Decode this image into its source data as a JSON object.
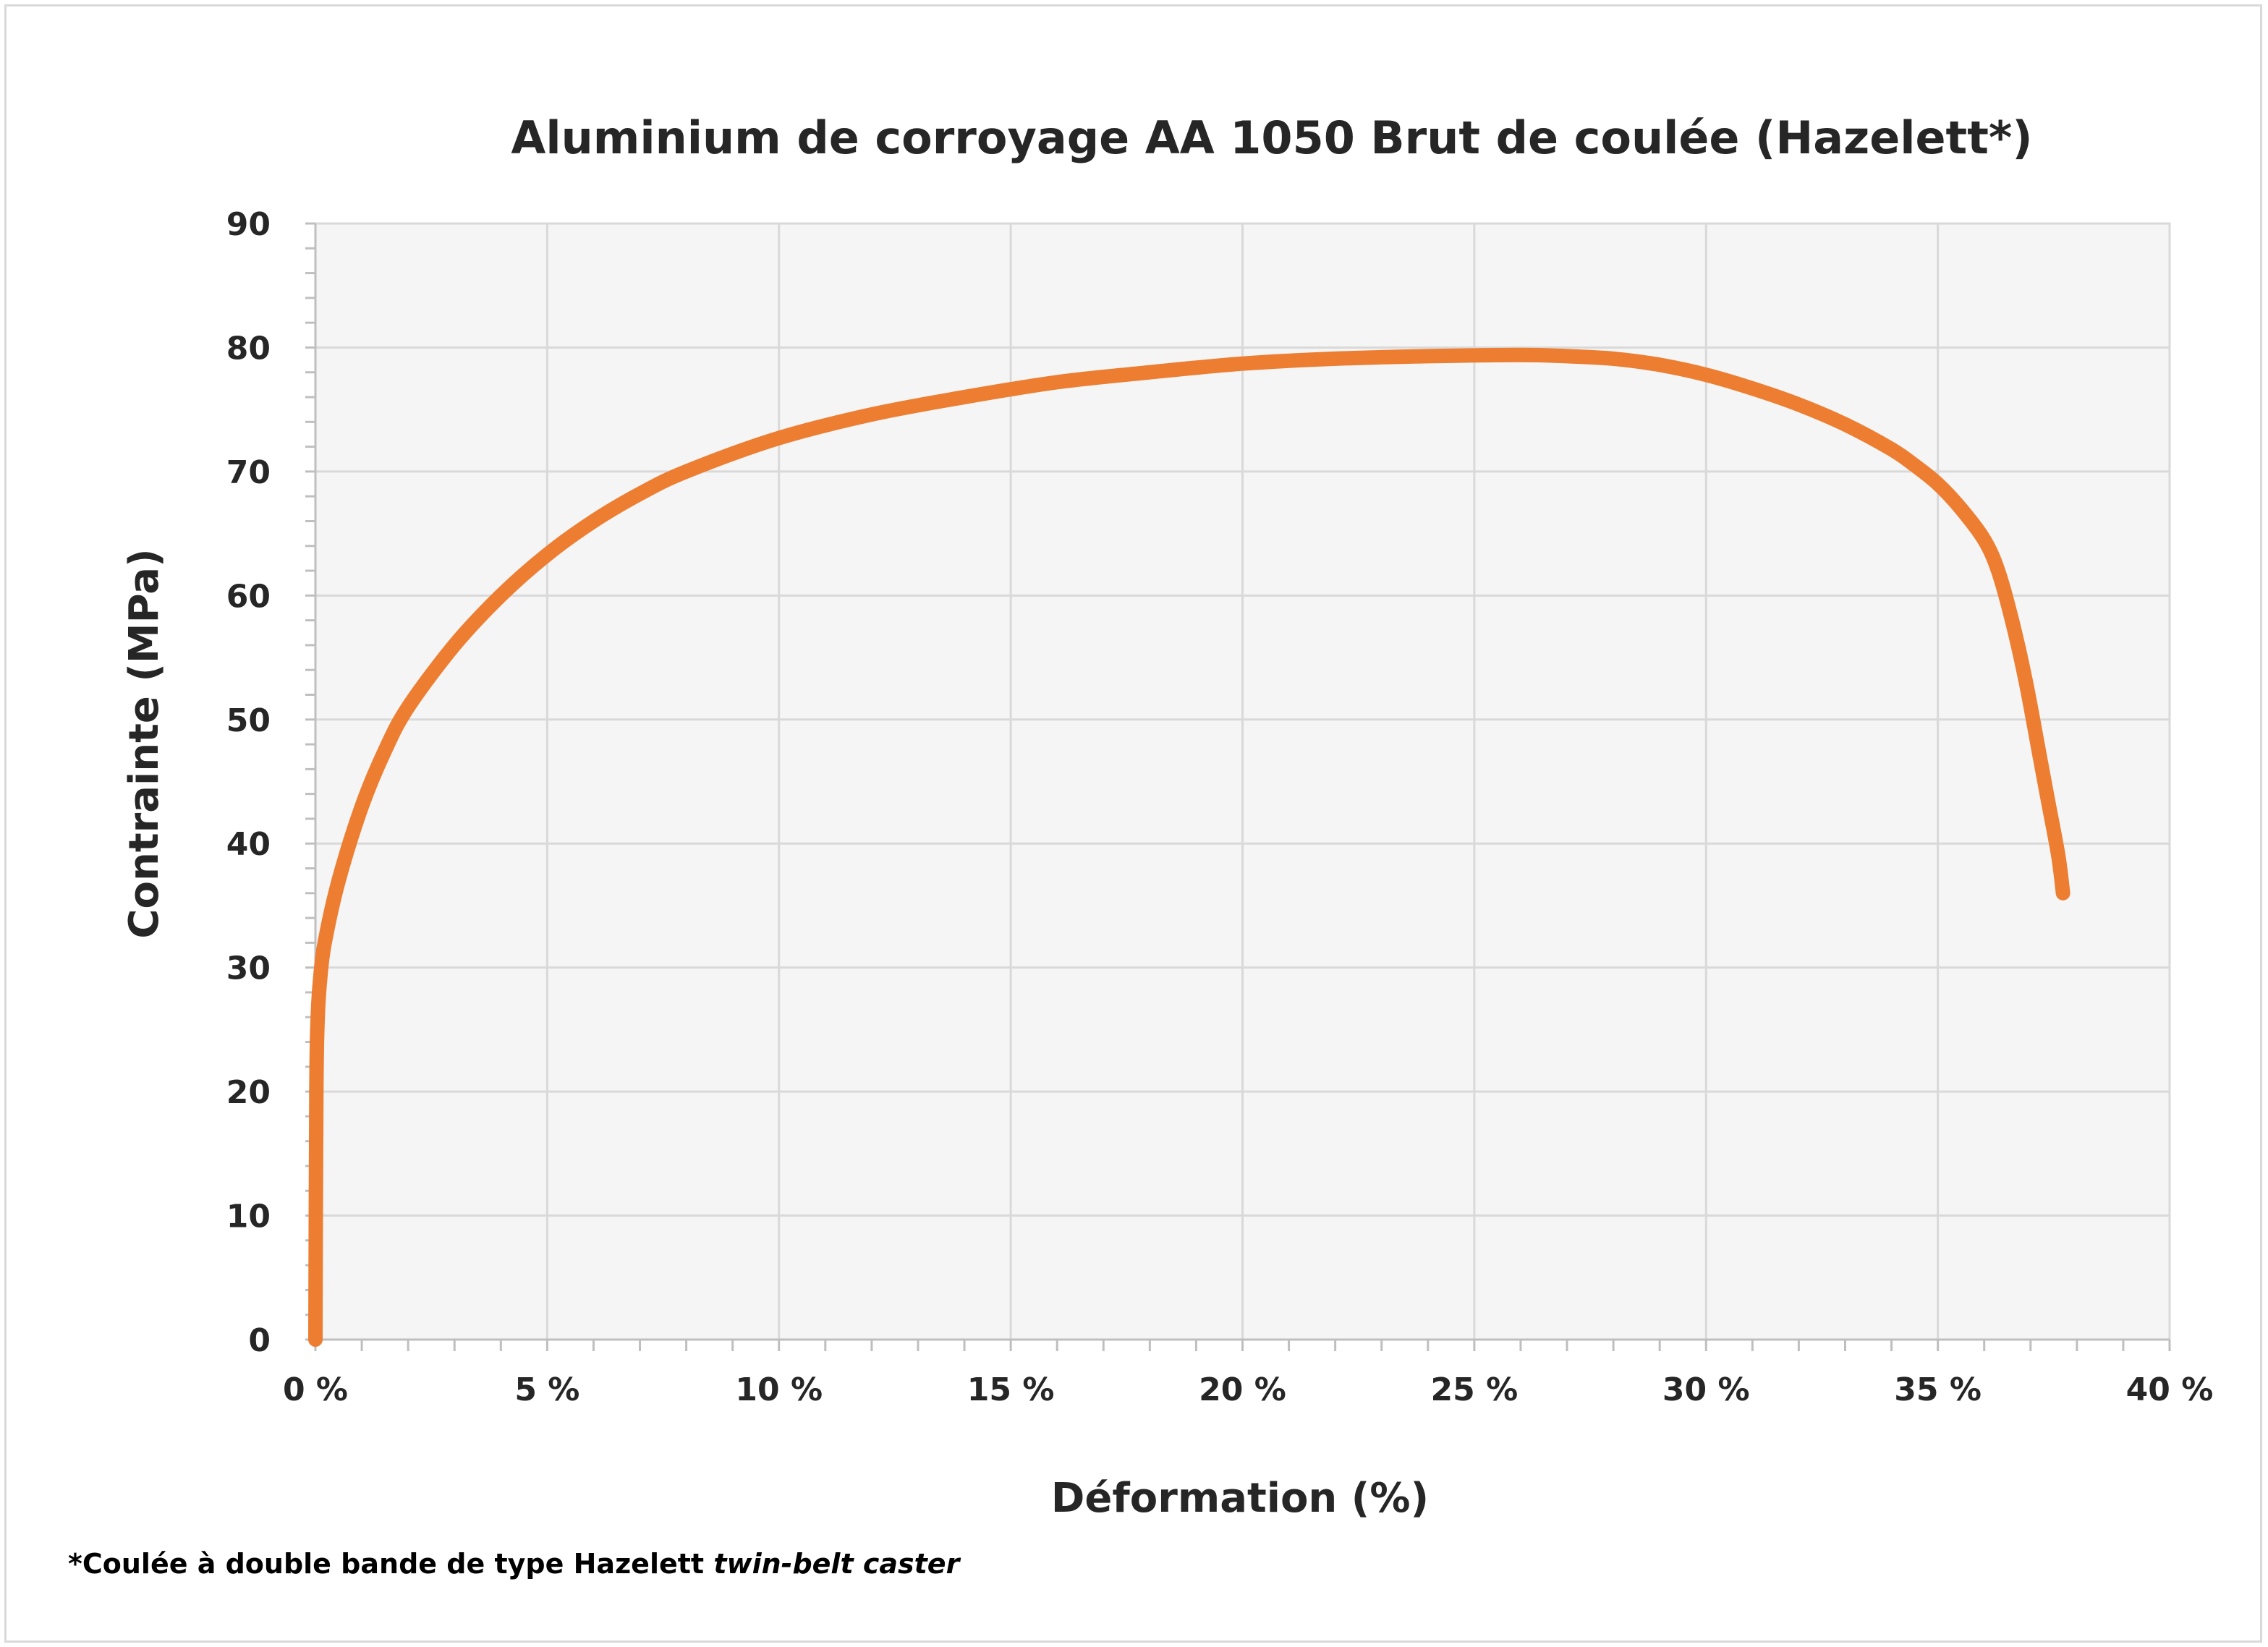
{
  "chart_data": {
    "type": "line",
    "title": "Aluminium de corroyage AA 1050 Brut de coulée (Hazelett*)",
    "xlabel": "Déformation (%)",
    "ylabel": "Contrainte (MPa)",
    "xlim": [
      0,
      40
    ],
    "ylim": [
      0,
      90
    ],
    "x_ticks": [
      0,
      5,
      10,
      15,
      20,
      25,
      30,
      35,
      40
    ],
    "x_tick_labels": [
      "0 %",
      "5 %",
      "10 %",
      "15 %",
      "20 %",
      "25 %",
      "30 %",
      "35 %",
      "40 %"
    ],
    "y_ticks": [
      0,
      10,
      20,
      30,
      40,
      50,
      60,
      70,
      80,
      90
    ],
    "y_tick_labels": [
      "0",
      "10",
      "20",
      "30",
      "40",
      "50",
      "60",
      "70",
      "80",
      "90"
    ],
    "grid": true,
    "legend": "none",
    "series": [
      {
        "color": "#ED7D31",
        "x": [
          0,
          0.02,
          0.05,
          0.1,
          0.2,
          0.5,
          1,
          1.5,
          2,
          3,
          4,
          5,
          6,
          7,
          8,
          10,
          12,
          14,
          16,
          18,
          20,
          22,
          24,
          26,
          27,
          28,
          29,
          30,
          31,
          32,
          33,
          34,
          34.5,
          35,
          35.5,
          36,
          36.3,
          36.6,
          36.9,
          37.2,
          37.4,
          37.6,
          37.7
        ],
        "y": [
          0,
          20,
          26,
          29,
          32,
          37,
          43,
          47.5,
          51,
          56,
          60,
          63.3,
          66,
          68.2,
          70,
          72.7,
          74.6,
          76,
          77.2,
          78,
          78.7,
          79.1,
          79.3,
          79.4,
          79.3,
          79.1,
          78.6,
          77.8,
          76.7,
          75.4,
          73.8,
          71.8,
          70.5,
          69,
          67,
          64.5,
          62,
          58,
          53,
          47,
          43,
          39,
          36
        ]
      }
    ]
  },
  "footnote": {
    "text": "*Coulée à double bande de type Hazelett ",
    "italic": "twin-belt caster"
  }
}
